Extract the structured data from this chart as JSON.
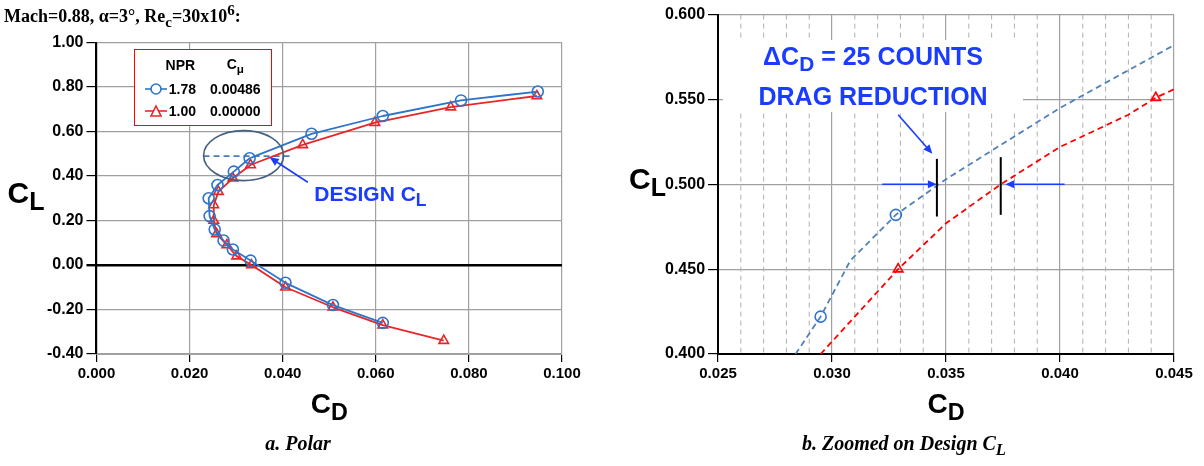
{
  "chart_data": [
    {
      "type": "line",
      "title": "Mach=0.88, α=3°, Re$_{c}$=30x10$^{6}$:",
      "xlabel": "C$_{D}$",
      "ylabel": "C$_{L}$",
      "legend_title": "NPR",
      "legend": "top left",
      "grid": true,
      "xlim": [
        0,
        0.1
      ],
      "xticks": [
        {
          "value": 0,
          "label": "0.000"
        },
        {
          "value": 0.02,
          "label": "0.020"
        },
        {
          "value": 0.04,
          "label": "0.040"
        },
        {
          "value": 0.06,
          "label": "0.060"
        },
        {
          "value": 0.08,
          "label": "0.080"
        },
        {
          "value": 0.1,
          "label": "0.100"
        }
      ],
      "ylim": [
        -0.4,
        1.0
      ],
      "yticks": [
        {
          "value": -0.4,
          "label": "-0.40"
        },
        {
          "value": -0.2,
          "label": "-0.20"
        },
        {
          "value": 0,
          "label": "0.00"
        },
        {
          "value": 0.2,
          "label": "0.20"
        },
        {
          "value": 0.4,
          "label": "0.40"
        },
        {
          "value": 0.6,
          "label": "0.60"
        },
        {
          "value": 0.8,
          "label": "0.80"
        },
        {
          "value": 1.0,
          "label": "1.00"
        }
      ],
      "annotations": [
        "DESIGN C$_{L}$",
        "C$_{μ}$",
        "0.00486",
        "0.00000",
        "a. Polar"
      ],
      "series": [
        {
          "name": "1.78",
          "color": "#2e75c9",
          "marker": "circle",
          "line_style": "solid",
          "x": [
            0.0615,
            0.0508,
            0.0406,
            0.0331,
            0.0293,
            0.0273,
            0.0254,
            0.0243,
            0.0241,
            0.026,
            0.0295,
            0.0329,
            0.0462,
            0.0615,
            0.0783,
            0.0948
          ],
          "values": [
            -0.26,
            -0.18,
            -0.08,
            0.02,
            0.07,
            0.11,
            0.16,
            0.22,
            0.3,
            0.36,
            0.42,
            0.48,
            0.59,
            0.67,
            0.74,
            0.78
          ]
        },
        {
          "name": "1.00",
          "color": "#e8262a",
          "marker": "triangle",
          "line_style": "solid",
          "x": [
            0.0746,
            0.0615,
            0.0508,
            0.0406,
            0.0333,
            0.0301,
            0.028,
            0.0258,
            0.0252,
            0.0252,
            0.0262,
            0.0293,
            0.0331,
            0.0443,
            0.0598,
            0.0761,
            0.0946
          ],
          "values": [
            -0.34,
            -0.27,
            -0.19,
            -0.1,
            0.0,
            0.04,
            0.09,
            0.14,
            0.2,
            0.27,
            0.33,
            0.39,
            0.45,
            0.54,
            0.64,
            0.71,
            0.76
          ]
        },
        {
          "type": "line",
          "color": "#4a7ebb",
          "marker": "none",
          "line_style": "dashed",
          "x": [
            0.023,
            0.0417
          ],
          "values": [
            0.49,
            0.49
          ]
        }
      ]
    },
    {
      "type": "line",
      "xlabel": "C$_{D}$",
      "ylabel": "C$_{L}$",
      "grid": true,
      "xlim": [
        0.025,
        0.045
      ],
      "xticks": [
        {
          "value": 0.025,
          "label": "0.025"
        },
        {
          "value": 0.026,
          "label": null
        },
        {
          "value": 0.027,
          "label": null
        },
        {
          "value": 0.028,
          "label": null
        },
        {
          "value": 0.029,
          "label": null
        },
        {
          "value": 0.03,
          "label": "0.030"
        },
        {
          "value": 0.031,
          "label": null
        },
        {
          "value": 0.032,
          "label": null
        },
        {
          "value": 0.033,
          "label": null
        },
        {
          "value": 0.034,
          "label": null
        },
        {
          "value": 0.035,
          "label": "0.035"
        },
        {
          "value": 0.036,
          "label": null
        },
        {
          "value": 0.037,
          "label": null
        },
        {
          "value": 0.038,
          "label": null
        },
        {
          "value": 0.039,
          "label": null
        },
        {
          "value": 0.04,
          "label": "0.040"
        },
        {
          "value": 0.041,
          "label": null
        },
        {
          "value": 0.042,
          "label": null
        },
        {
          "value": 0.043,
          "label": null
        },
        {
          "value": 0.044,
          "label": null
        },
        {
          "value": 0.045,
          "label": "0.045"
        }
      ],
      "ylim": [
        0.4,
        0.6
      ],
      "yticks": [
        {
          "value": 0.4,
          "label": "0.400"
        },
        {
          "value": 0.45,
          "label": "0.450"
        },
        {
          "value": 0.5,
          "label": "0.500"
        },
        {
          "value": 0.55,
          "label": "0.550"
        },
        {
          "value": 0.6,
          "label": "0.600"
        }
      ],
      "annotations": [
        "ΔC$_{D}$ = 25 COUNTS DRAG REDUCTION",
        "b. Zoomed on Design C$_{L}$"
      ],
      "series": [
        {
          "type": "line",
          "color": "#4f81bd",
          "marker": "none",
          "line_style": "dashed",
          "x": [
            0.0284,
            0.0295,
            0.0308,
            0.0328,
            0.035,
            0.04,
            0.045
          ],
          "values": [
            0.4,
            0.422,
            0.455,
            0.482,
            0.503,
            0.545,
            0.582
          ]
        },
        {
          "type": "line",
          "color": "#ff0000",
          "marker": "none",
          "line_style": "dashed",
          "x": [
            0.0295,
            0.0329,
            0.035,
            0.0374,
            0.04,
            0.043,
            0.0442,
            0.045
          ],
          "values": [
            0.4,
            0.45,
            0.477,
            0.5,
            0.522,
            0.541,
            0.551,
            0.556
          ]
        },
        {
          "type": "scatter",
          "color": "#2e75c9",
          "marker": "circle",
          "x": [
            0.0295,
            0.0328
          ],
          "values": [
            0.422,
            0.482
          ]
        },
        {
          "type": "scatter",
          "color": "#ff0000",
          "marker": "triangle",
          "x": [
            0.0329,
            0.0442
          ],
          "values": [
            0.45,
            0.551
          ]
        }
      ]
    }
  ]
}
